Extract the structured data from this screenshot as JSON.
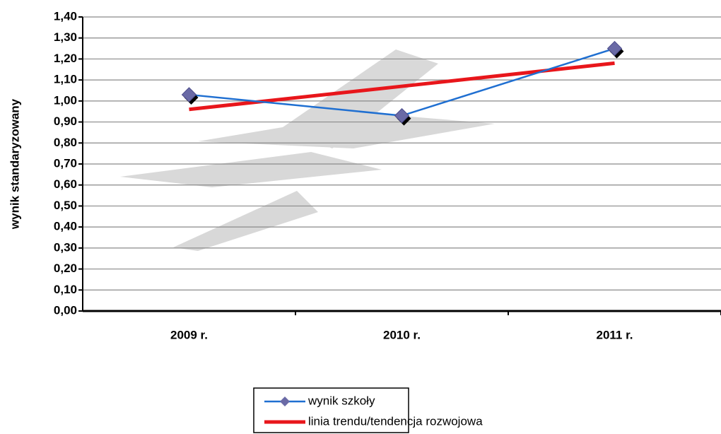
{
  "chart_data": {
    "type": "line",
    "y_label": "wynik standaryzowany",
    "categories": [
      "2009 r.",
      "2010 r.",
      "2011 r."
    ],
    "series": [
      {
        "name": "wynik szkoły",
        "color": "#1f6fd1",
        "marker": "diamond",
        "marker_color": "#6a6aa6",
        "values": [
          1.03,
          0.93,
          1.25
        ]
      },
      {
        "name": "linia trendu/tendencja rozwojowa",
        "color": "#e8161b",
        "marker": "none",
        "values": [
          0.96,
          1.07,
          1.18
        ]
      }
    ],
    "ylim": [
      0,
      1.4
    ],
    "yticks": [
      {
        "value": 0,
        "label": "0,00"
      },
      {
        "value": 0.1,
        "label": "0,10"
      },
      {
        "value": 0.2,
        "label": "0,20"
      },
      {
        "value": 0.3,
        "label": "0,30"
      },
      {
        "value": 0.4,
        "label": "0,40"
      },
      {
        "value": 0.5,
        "label": "0,50"
      },
      {
        "value": 0.6,
        "label": "0,60"
      },
      {
        "value": 0.7,
        "label": "0,70"
      },
      {
        "value": 0.8,
        "label": "0,80"
      },
      {
        "value": 0.9,
        "label": "0,90"
      },
      {
        "value": 1.0,
        "label": "1,00"
      },
      {
        "value": 1.1,
        "label": "1,10"
      },
      {
        "value": 1.2,
        "label": "1,20"
      },
      {
        "value": 1.3,
        "label": "1,30"
      },
      {
        "value": 1.4,
        "label": "1,40"
      }
    ],
    "grid": true
  }
}
